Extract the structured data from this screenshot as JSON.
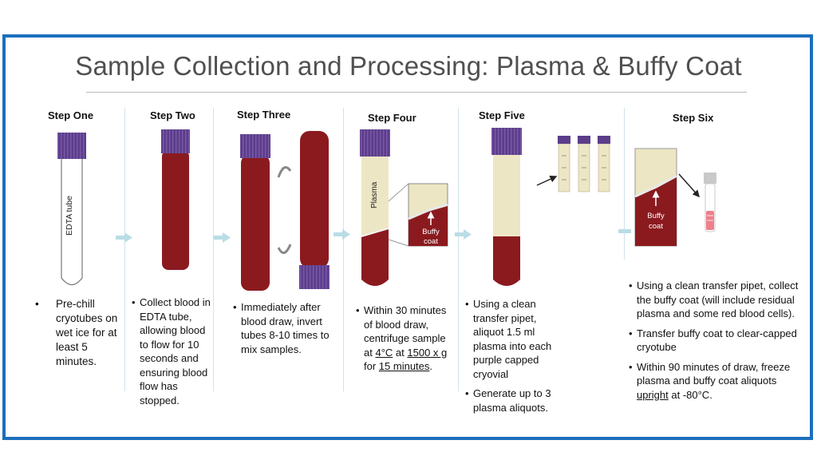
{
  "title": "Sample Collection and Processing: Plasma & Buffy Coat",
  "colors": {
    "frame": "#1b6fbd",
    "blood": "#8b1a1f",
    "plasma": "#ede6c4",
    "cap": "#5b3d8a",
    "arrow": "#b9dde6"
  },
  "steps": [
    {
      "title": "Step One",
      "tube_label": "EDTA tube",
      "text": [
        "Pre-chill cryotubes on wet ice for at least 5 minutes."
      ]
    },
    {
      "title": "Step Two",
      "text": [
        "Collect blood in EDTA tube, allowing blood to flow for 10 seconds and ensuring blood flow has stopped."
      ]
    },
    {
      "title": "Step Three",
      "text": [
        "Immediately after blood draw, invert tubes 8-10 times to mix samples."
      ]
    },
    {
      "title": "Step Four",
      "plasma_label": "Plasma",
      "buffy_label": "Buffy coat",
      "text_a": "Within 30 minutes of blood draw, centrifuge sample at ",
      "temp": "4°C",
      "text_b": " at ",
      "speed": "1500 x g ",
      "text_c": "for ",
      "minutes": "15 minutes",
      "text_d": "."
    },
    {
      "title": "Step Five",
      "text": [
        "Using a clean transfer pipet, aliquot 1.5 ml plasma into each purple capped cryovial",
        "Generate up to 3 plasma aliquots."
      ]
    },
    {
      "title": "Step Six",
      "buffy_label": "Buffy coat",
      "text": [
        "Using a clean transfer pipet, collect the buffy coat (will include residual plasma and some red blood cells).",
        "Transfer buffy coat to clear-capped cryotube"
      ],
      "text3_a": "Within 90 minutes of draw, freeze plasma and buffy coat aliquots ",
      "text3_u": "upright",
      "text3_b": " at -80°C."
    }
  ]
}
